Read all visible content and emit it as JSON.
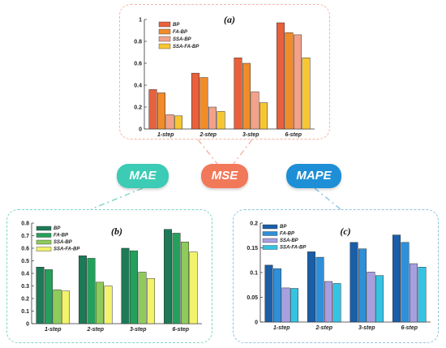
{
  "badges": {
    "mae": "MAE",
    "mse": "MSE",
    "mape": "MAPE"
  },
  "colors": {
    "mse_theme": "#f2785a",
    "mae_theme": "#3ccbb5",
    "mape_theme": "#1e8fd6",
    "mse_border": "#f2b5a3",
    "mae_border": "#7dd4c4",
    "mape_border": "#8fc4e6"
  },
  "chart_data": [
    {
      "id": "a",
      "type": "bar",
      "panel_label": "(a)",
      "categories": [
        "1-step",
        "2-step",
        "3-step",
        "6-step"
      ],
      "ylim": [
        0,
        1
      ],
      "yticks": [
        "0",
        "0.2",
        "0.4",
        "0.6",
        "0.8",
        "1"
      ],
      "tick_values": [
        0,
        0.2,
        0.4,
        0.6,
        0.8,
        1
      ],
      "legend_position": "top-left",
      "series": [
        {
          "name": "BP",
          "color": "#e8603c",
          "values": [
            0.36,
            0.51,
            0.65,
            0.97
          ]
        },
        {
          "name": "FA-BP",
          "color": "#f08c2a",
          "values": [
            0.33,
            0.47,
            0.6,
            0.88
          ]
        },
        {
          "name": "SSA-BP",
          "color": "#f2a28a",
          "values": [
            0.13,
            0.2,
            0.34,
            0.86
          ]
        },
        {
          "name": "SSA-FA-BP",
          "color": "#f7c633",
          "values": [
            0.12,
            0.16,
            0.24,
            0.65
          ]
        }
      ]
    },
    {
      "id": "b",
      "type": "bar",
      "panel_label": "(b)",
      "categories": [
        "1-step",
        "2-step",
        "3-step",
        "6-step"
      ],
      "ylim": [
        0,
        0.8
      ],
      "yticks": [
        "0",
        "0.1",
        "0.2",
        "0.3",
        "0.4",
        "0.5",
        "0.6",
        "0.7",
        "0.8"
      ],
      "tick_values": [
        0,
        0.1,
        0.2,
        0.3,
        0.4,
        0.5,
        0.6,
        0.7,
        0.8
      ],
      "legend_position": "top-left",
      "series": [
        {
          "name": "BP",
          "color": "#1d7a56",
          "values": [
            0.45,
            0.54,
            0.6,
            0.75
          ]
        },
        {
          "name": "FA-BP",
          "color": "#25a05c",
          "values": [
            0.43,
            0.52,
            0.58,
            0.72
          ]
        },
        {
          "name": "SSA-BP",
          "color": "#8ecb5b",
          "values": [
            0.27,
            0.33,
            0.41,
            0.65
          ]
        },
        {
          "name": "SSA-FA-BP",
          "color": "#f2f26c",
          "values": [
            0.26,
            0.3,
            0.36,
            0.57
          ]
        }
      ]
    },
    {
      "id": "c",
      "type": "bar",
      "panel_label": "(c)",
      "categories": [
        "1-step",
        "2-step",
        "3-step",
        "6-step"
      ],
      "ylim": [
        0,
        0.2
      ],
      "yticks": [
        "0",
        "0.05",
        "0.1",
        "0.15",
        "0.2"
      ],
      "tick_values": [
        0,
        0.05,
        0.1,
        0.15,
        0.2
      ],
      "legend_position": "top-left",
      "series": [
        {
          "name": "BP",
          "color": "#1a5ea8",
          "values": [
            0.115,
            0.142,
            0.161,
            0.176
          ]
        },
        {
          "name": "FA-BP",
          "color": "#2f8fd8",
          "values": [
            0.108,
            0.131,
            0.148,
            0.161
          ]
        },
        {
          "name": "SSA-BP",
          "color": "#a79fe0",
          "values": [
            0.069,
            0.082,
            0.101,
            0.118
          ]
        },
        {
          "name": "SSA-FA-BP",
          "color": "#35c3e3",
          "values": [
            0.068,
            0.078,
            0.094,
            0.111
          ]
        }
      ]
    }
  ]
}
